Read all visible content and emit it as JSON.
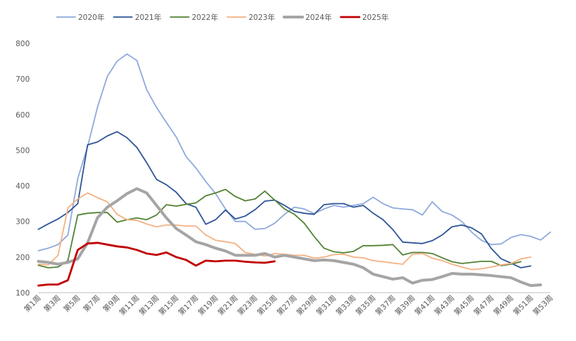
{
  "chart_data": {
    "type": "line",
    "title": "",
    "xlabel": "",
    "ylabel": "",
    "ylim": [
      100,
      800
    ],
    "yticks": [
      100,
      200,
      300,
      400,
      500,
      600,
      700,
      800
    ],
    "grid": false,
    "legend_position": "top",
    "x": [
      "第1周",
      "第2周",
      "第3周",
      "第4周",
      "第5周",
      "第6周",
      "第7周",
      "第8周",
      "第9周",
      "第10周",
      "第11周",
      "第12周",
      "第13周",
      "第14周",
      "第15周",
      "第16周",
      "第17周",
      "第18周",
      "第19周",
      "第20周",
      "第21周",
      "第22周",
      "第23周",
      "第24周",
      "第25周",
      "第26周",
      "第27周",
      "第28周",
      "第29周",
      "第30周",
      "第31周",
      "第32周",
      "第33周",
      "第34周",
      "第35周",
      "第36周",
      "第37周",
      "第38周",
      "第39周",
      "第40周",
      "第41周",
      "第42周",
      "第43周",
      "第44周",
      "第45周",
      "第46周",
      "第47周",
      "第48周",
      "第49周",
      "第50周",
      "第51周",
      "第52周",
      "第53周"
    ],
    "xtick_labels": [
      "第1周",
      "第3周",
      "第5周",
      "第7周",
      "第9周",
      "第11周",
      "第13周",
      "第15周",
      "第17周",
      "第19周",
      "第21周",
      "第23周",
      "第25周",
      "第27周",
      "第29周",
      "第31周",
      "第33周",
      "第35周",
      "第37周",
      "第39周",
      "第41周",
      "第43周",
      "第45周",
      "第47周",
      "第49周",
      "第51周",
      "第53周"
    ],
    "series": [
      {
        "name": "2020年",
        "color": "#8faadc",
        "width": 1.8,
        "values": [
          218,
          225,
          235,
          262,
          420,
          510,
          620,
          707,
          750,
          770,
          752,
          670,
          620,
          578,
          537,
          482,
          450,
          412,
          378,
          335,
          300,
          300,
          278,
          280,
          295,
          320,
          340,
          335,
          322,
          335,
          345,
          340,
          345,
          350,
          368,
          350,
          338,
          335,
          333,
          318,
          355,
          328,
          318,
          300,
          270,
          247,
          235,
          237,
          255,
          263,
          258,
          248,
          270
        ]
      },
      {
        "name": "2021年",
        "color": "#2f5597",
        "width": 1.8,
        "values": [
          278,
          293,
          307,
          325,
          350,
          515,
          523,
          540,
          552,
          535,
          508,
          465,
          418,
          403,
          382,
          350,
          340,
          292,
          305,
          332,
          307,
          315,
          333,
          357,
          360,
          345,
          328,
          323,
          320,
          347,
          350,
          350,
          340,
          345,
          323,
          305,
          277,
          242,
          240,
          238,
          246,
          262,
          285,
          290,
          282,
          265,
          224,
          195,
          183,
          170,
          175,
          null,
          null
        ]
      },
      {
        "name": "2022年",
        "color": "#548235",
        "width": 1.8,
        "values": [
          177,
          170,
          172,
          190,
          318,
          323,
          325,
          325,
          298,
          305,
          310,
          305,
          318,
          347,
          343,
          348,
          352,
          372,
          380,
          390,
          370,
          358,
          363,
          385,
          360,
          335,
          320,
          295,
          258,
          225,
          215,
          212,
          216,
          232,
          232,
          233,
          235,
          206,
          213,
          213,
          210,
          198,
          187,
          182,
          185,
          188,
          188,
          176,
          180,
          187,
          null,
          null,
          null
        ]
      },
      {
        "name": "2023年",
        "color": "#f4b183",
        "width": 1.8,
        "values": [
          180,
          178,
          205,
          338,
          363,
          380,
          367,
          355,
          320,
          305,
          303,
          293,
          285,
          290,
          290,
          287,
          287,
          262,
          247,
          243,
          238,
          213,
          208,
          203,
          210,
          208,
          205,
          205,
          197,
          200,
          207,
          208,
          200,
          198,
          190,
          187,
          183,
          180,
          208,
          210,
          197,
          190,
          180,
          172,
          165,
          167,
          172,
          178,
          182,
          195,
          200,
          null,
          null
        ]
      },
      {
        "name": "2024年",
        "color": "#a5a5a5",
        "width": 4,
        "values": [
          188,
          185,
          180,
          185,
          195,
          240,
          310,
          340,
          358,
          378,
          392,
          380,
          345,
          310,
          280,
          262,
          243,
          235,
          225,
          217,
          205,
          205,
          205,
          210,
          200,
          205,
          200,
          195,
          190,
          192,
          190,
          185,
          180,
          170,
          152,
          145,
          138,
          142,
          127,
          135,
          137,
          145,
          154,
          152,
          152,
          150,
          148,
          145,
          142,
          130,
          120,
          122,
          null
        ]
      },
      {
        "name": "2025年",
        "color": "#c00000",
        "width": 2.8,
        "values": [
          120,
          123,
          123,
          135,
          220,
          238,
          240,
          235,
          230,
          227,
          220,
          210,
          206,
          213,
          200,
          192,
          176,
          190,
          188,
          190,
          190,
          187,
          185,
          184,
          188,
          null,
          null,
          null,
          null,
          null,
          null,
          null,
          null,
          null,
          null,
          null,
          null,
          null,
          null,
          null,
          null,
          null,
          null,
          null,
          null,
          null,
          null,
          null,
          null,
          null,
          null,
          null,
          null
        ]
      }
    ]
  }
}
